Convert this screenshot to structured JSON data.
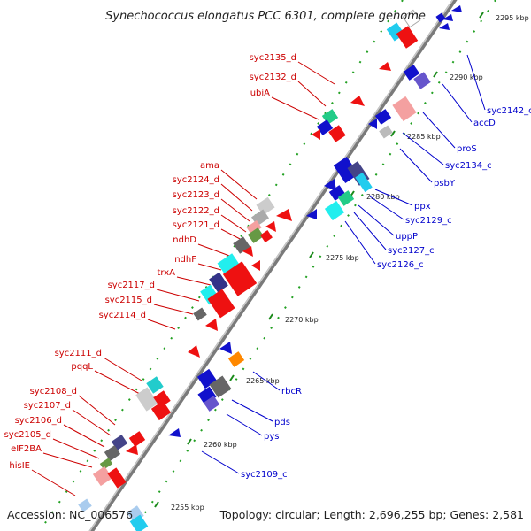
{
  "title": "Synechococcus elongatus PCC 6301, complete genome",
  "footer": {
    "accession": "Accession: NC_006576",
    "stats": "Topology: circular; Length: 2,696,255 bp; Genes: 2,581"
  },
  "colors": {
    "reverse_label": "#cc0000",
    "forward_label": "#0000cc",
    "backbone": "#888888",
    "tick": "#1a8a1a"
  },
  "ticks": [
    "2255 kbp",
    "2260 kbp",
    "2265 kbp",
    "2270 kbp",
    "2275 kbp",
    "2280 kbp",
    "2285 kbp",
    "2290 kbp",
    "2295 kbp"
  ],
  "labels_left": [
    "syc2135_d",
    "syc2132_d",
    "ubiA",
    "ama",
    "syc2124_d",
    "syc2123_d",
    "syc2122_d",
    "syc2121_d",
    "ndhD",
    "ndhF",
    "trxA",
    "syc2117_d",
    "syc2115_d",
    "syc2114_d",
    "syc2111_d",
    "pqqL",
    "syc2108_d",
    "syc2107_d",
    "syc2106_d",
    "syc2105_d",
    "eIF2BA",
    "hisIE"
  ],
  "labels_right": [
    "syc2142_c",
    "accD",
    "proS",
    "syc2134_c",
    "psbY",
    "ppx",
    "syc2129_c",
    "uppP",
    "syc2127_c",
    "syc2126_c",
    "rbcR",
    "pds",
    "pys",
    "syc2109_c"
  ]
}
